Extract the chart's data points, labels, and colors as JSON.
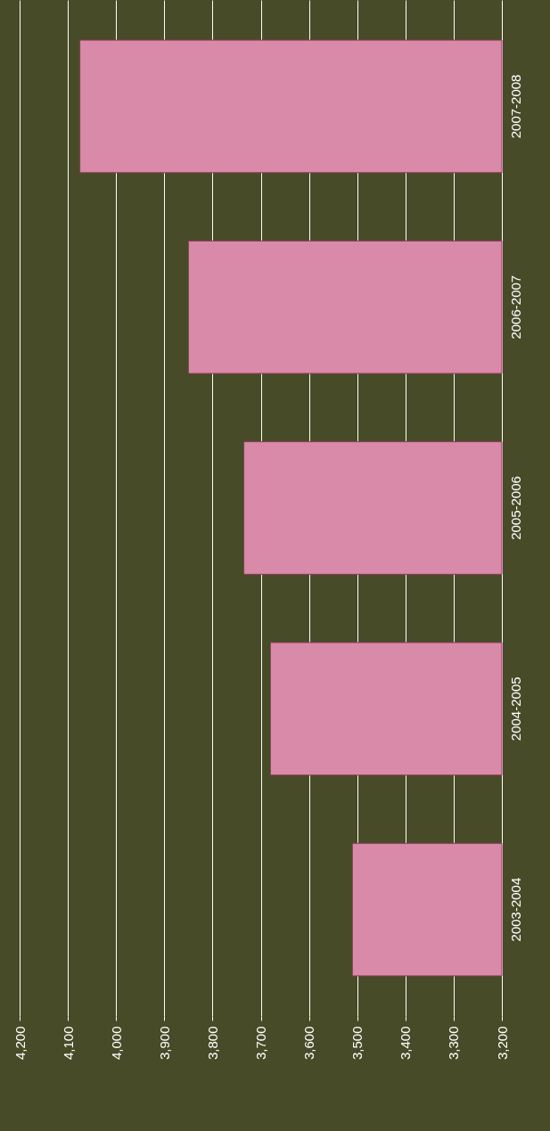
{
  "chart_data": {
    "type": "bar",
    "orientation": "horizontal",
    "categories": [
      "2007-2008",
      "2006-2007",
      "2005-2006",
      "2004-2005",
      "2003-2004"
    ],
    "values": [
      4075,
      3850,
      3735,
      3680,
      3510
    ],
    "color": "#d98aa8",
    "xlim": [
      4200,
      3200
    ],
    "xticks": [
      {
        "value": 4200,
        "label": "4,200"
      },
      {
        "value": 4100,
        "label": "4,100"
      },
      {
        "value": 4000,
        "label": "4,000"
      },
      {
        "value": 3900,
        "label": "3,900"
      },
      {
        "value": 3800,
        "label": "3,800"
      },
      {
        "value": 3700,
        "label": "3,700"
      },
      {
        "value": 3600,
        "label": "3,600"
      },
      {
        "value": 3500,
        "label": "3,500"
      },
      {
        "value": 3400,
        "label": "3,400"
      },
      {
        "value": 3300,
        "label": "3,300"
      },
      {
        "value": 3200,
        "label": "3,200"
      }
    ],
    "grid": true
  }
}
